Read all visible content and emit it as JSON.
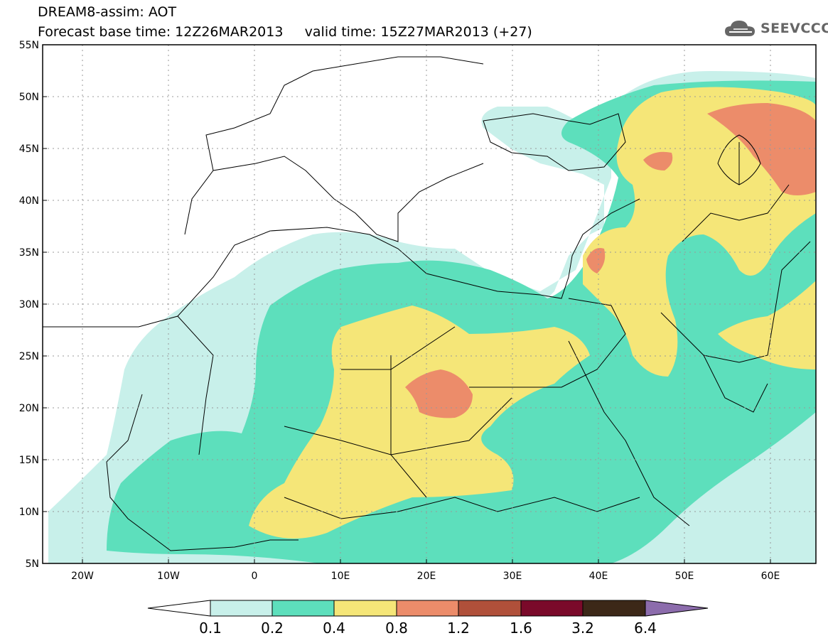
{
  "header": {
    "title_line1": "DREAM8-assim: AOT",
    "title_line2": "Forecast base time: 12Z26MAR2013     valid time: 15Z27MAR2013 (+27)",
    "logo_text": "SEEVCCC"
  },
  "map": {
    "lon_range": [
      -25,
      65
    ],
    "lat_range": [
      5,
      55
    ],
    "lat_labels": [
      "55N",
      "50N",
      "45N",
      "40N",
      "35N",
      "30N",
      "25N",
      "20N",
      "15N",
      "10N",
      "5N"
    ],
    "lon_labels": [
      "20W",
      "10W",
      "0",
      "10E",
      "20E",
      "30E",
      "40E",
      "50E",
      "60E"
    ],
    "land_color": "#ffffff",
    "border_color": "#000000"
  },
  "colorbar": {
    "labels": [
      "0.1",
      "0.2",
      "0.4",
      "0.8",
      "1.2",
      "1.6",
      "3.2",
      "6.4"
    ],
    "colors": [
      "#c8f0ea",
      "#5ddfbc",
      "#f5e678",
      "#ec8c6a",
      "#b0503a",
      "#7a0a2a",
      "#3c2818",
      "#8c6cac"
    ],
    "under_color": "#ffffff"
  }
}
